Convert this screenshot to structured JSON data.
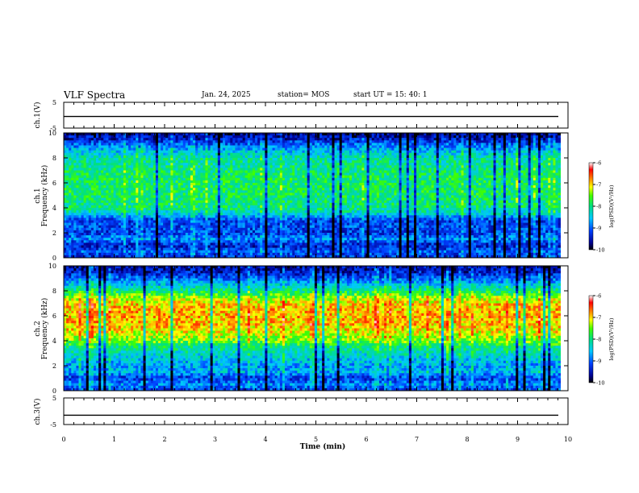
{
  "header": {
    "title": "VLF Spectra",
    "date": "Jan. 24, 2025",
    "station": "station= MOS",
    "start": "start UT =   15: 40: 1"
  },
  "chart_data": [
    {
      "type": "line",
      "name": "ch1-waveform",
      "ylabel": "ch.1(V)",
      "ylim": [
        -5,
        5
      ],
      "yticks": [
        "5",
        "-5"
      ],
      "xlim": [
        0,
        10
      ],
      "level": -0.5
    },
    {
      "type": "heatmap",
      "name": "ch1-spectrogram",
      "ylabel": "ch.1\nFrequency (kHz)",
      "ylabel_lines": [
        "ch.1",
        "Frequency (kHz)"
      ],
      "ylim": [
        0,
        10
      ],
      "yticks": [
        "0",
        "2",
        "4",
        "6",
        "8",
        "10"
      ],
      "xlim": [
        0,
        9.85
      ],
      "profile": {
        "freq_kHz": [
          0,
          0.5,
          1,
          1.5,
          2,
          2.5,
          3,
          3.5,
          4,
          4.5,
          5,
          5.5,
          6,
          6.5,
          7,
          7.5,
          8,
          8.5,
          9,
          9.5,
          10
        ],
        "log_psd": [
          -9.3,
          -9.0,
          -9.4,
          -8.8,
          -9.2,
          -9.1,
          -9.2,
          -8.4,
          -8.0,
          -8.0,
          -7.9,
          -7.9,
          -7.9,
          -7.9,
          -8.0,
          -8.1,
          -8.2,
          -8.5,
          -8.9,
          -9.4,
          -9.7
        ]
      },
      "colorbar": {
        "label": "log(PSD)(V²/Hz)",
        "range": [
          -10,
          -6
        ],
        "ticks": [
          "-6",
          "-7",
          "-8",
          "-9",
          "-10"
        ]
      }
    },
    {
      "type": "heatmap",
      "name": "ch2-spectrogram",
      "ylabel": "ch.2\nFrequency (kHz)",
      "ylabel_lines": [
        "ch.2",
        "Frequency (kHz)"
      ],
      "ylim": [
        0,
        10
      ],
      "yticks": [
        "0",
        "2",
        "4",
        "6",
        "8",
        "10"
      ],
      "xlim": [
        0,
        9.85
      ],
      "profile": {
        "freq_kHz": [
          0,
          0.5,
          1,
          1.5,
          2,
          2.5,
          3,
          3.5,
          4,
          4.5,
          5,
          5.5,
          6,
          6.5,
          7,
          7.5,
          8,
          8.5,
          9,
          9.5,
          10
        ],
        "log_psd": [
          -9.2,
          -8.8,
          -9.2,
          -8.6,
          -8.7,
          -8.5,
          -8.3,
          -8.0,
          -7.5,
          -7.2,
          -7.0,
          -6.9,
          -6.9,
          -6.9,
          -7.0,
          -7.4,
          -8.0,
          -8.5,
          -9.0,
          -9.4,
          -9.6
        ]
      },
      "colorbar": {
        "label": "log(PSD)(V²/Hz)",
        "range": [
          -10,
          -6
        ],
        "ticks": [
          "-6",
          "-7",
          "-8",
          "-9",
          "-10"
        ]
      }
    },
    {
      "type": "line",
      "name": "ch3-waveform",
      "ylabel": "ch.3(V)",
      "ylim": [
        -5,
        5
      ],
      "yticks": [
        "5",
        "-5"
      ],
      "xlim": [
        0,
        10
      ],
      "level": -1.5
    }
  ],
  "x_axis": {
    "label": "Time (min)",
    "range": [
      0,
      10
    ],
    "ticks": [
      "0",
      "1",
      "2",
      "3",
      "4",
      "5",
      "6",
      "7",
      "8",
      "9",
      "10"
    ]
  }
}
